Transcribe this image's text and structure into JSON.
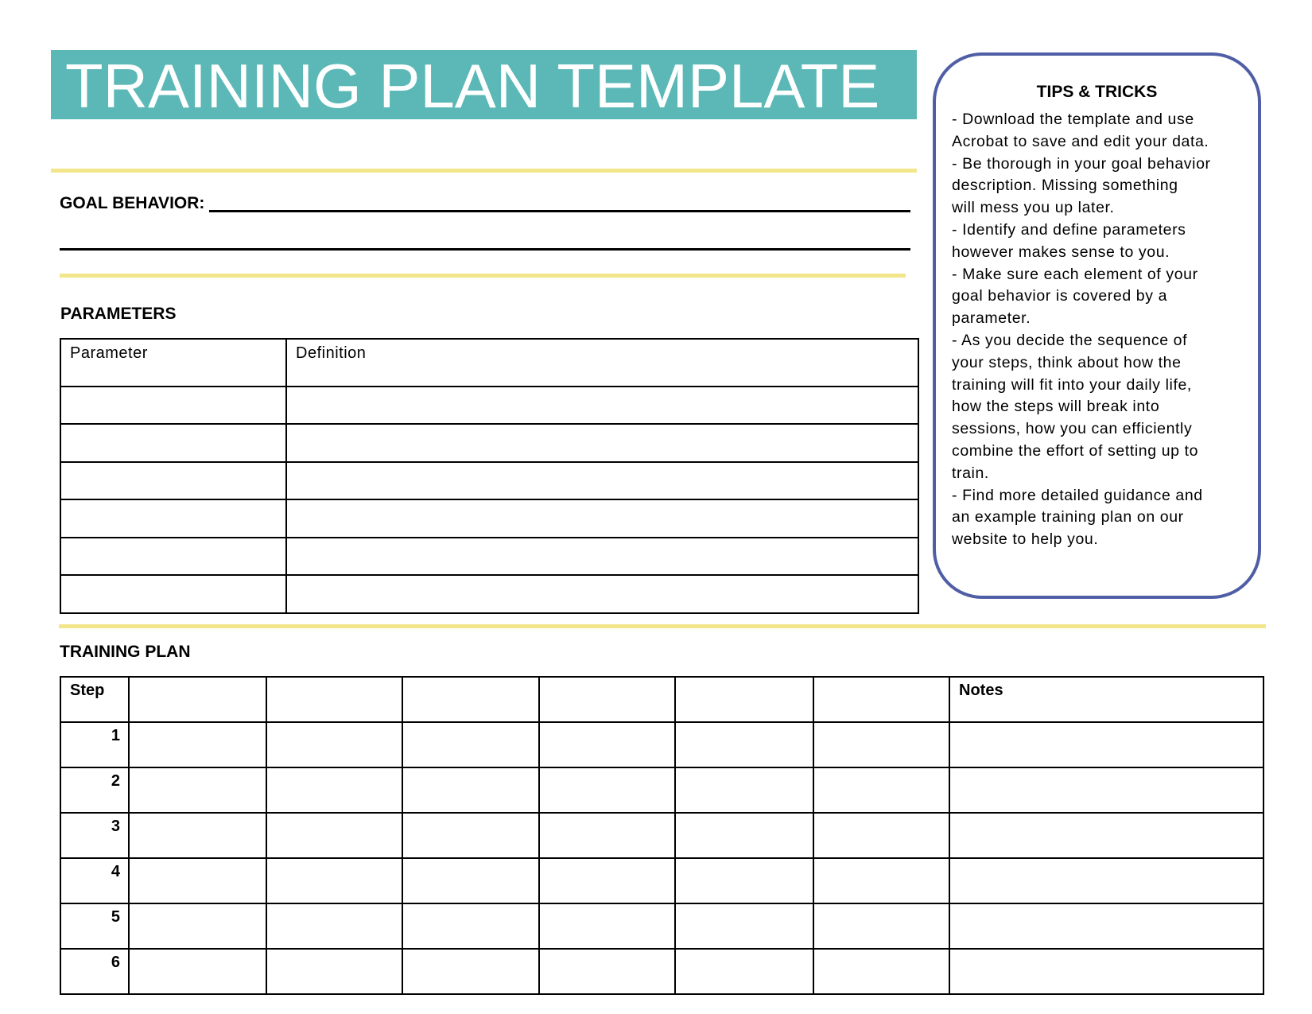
{
  "title": "TRAINING PLAN TEMPLATE",
  "colors": {
    "banner": "#5bb8b6",
    "divider": "#f3e68a",
    "tips_border": "#4f5ea5"
  },
  "goal_behavior": {
    "label": "GOAL BEHAVIOR:",
    "value": ""
  },
  "parameters": {
    "heading": "PARAMETERS",
    "columns": [
      "Parameter",
      "Definition"
    ],
    "rows": [
      [
        "",
        ""
      ],
      [
        "",
        ""
      ],
      [
        "",
        ""
      ],
      [
        "",
        ""
      ],
      [
        "",
        ""
      ],
      [
        "",
        ""
      ]
    ]
  },
  "training_plan": {
    "heading": "TRAINING PLAN",
    "columns": [
      "Step",
      "",
      "",
      "",
      "",
      "",
      "",
      "Notes"
    ],
    "steps": [
      "1",
      "2",
      "3",
      "4",
      "5",
      "6"
    ]
  },
  "tips": {
    "title": "TIPS & TRICKS",
    "lines": [
      "- Download the template and use",
      "Acrobat to save and edit your data.",
      "- Be thorough in your goal behavior",
      "description.  Missing something",
      "will mess you up later.",
      "- Identify and define parameters",
      "however makes sense to you.",
      "- Make sure each element of your",
      "goal behavior is covered by a",
      "parameter.",
      "- As you decide the sequence of",
      "your steps, think about how the",
      "training will fit into your daily life,",
      "how the steps will break into",
      "sessions, how you can efficiently",
      "combine the effort of setting up to",
      "train.",
      "- Find more detailed guidance and",
      "an example training plan on our",
      "website to help you."
    ]
  }
}
